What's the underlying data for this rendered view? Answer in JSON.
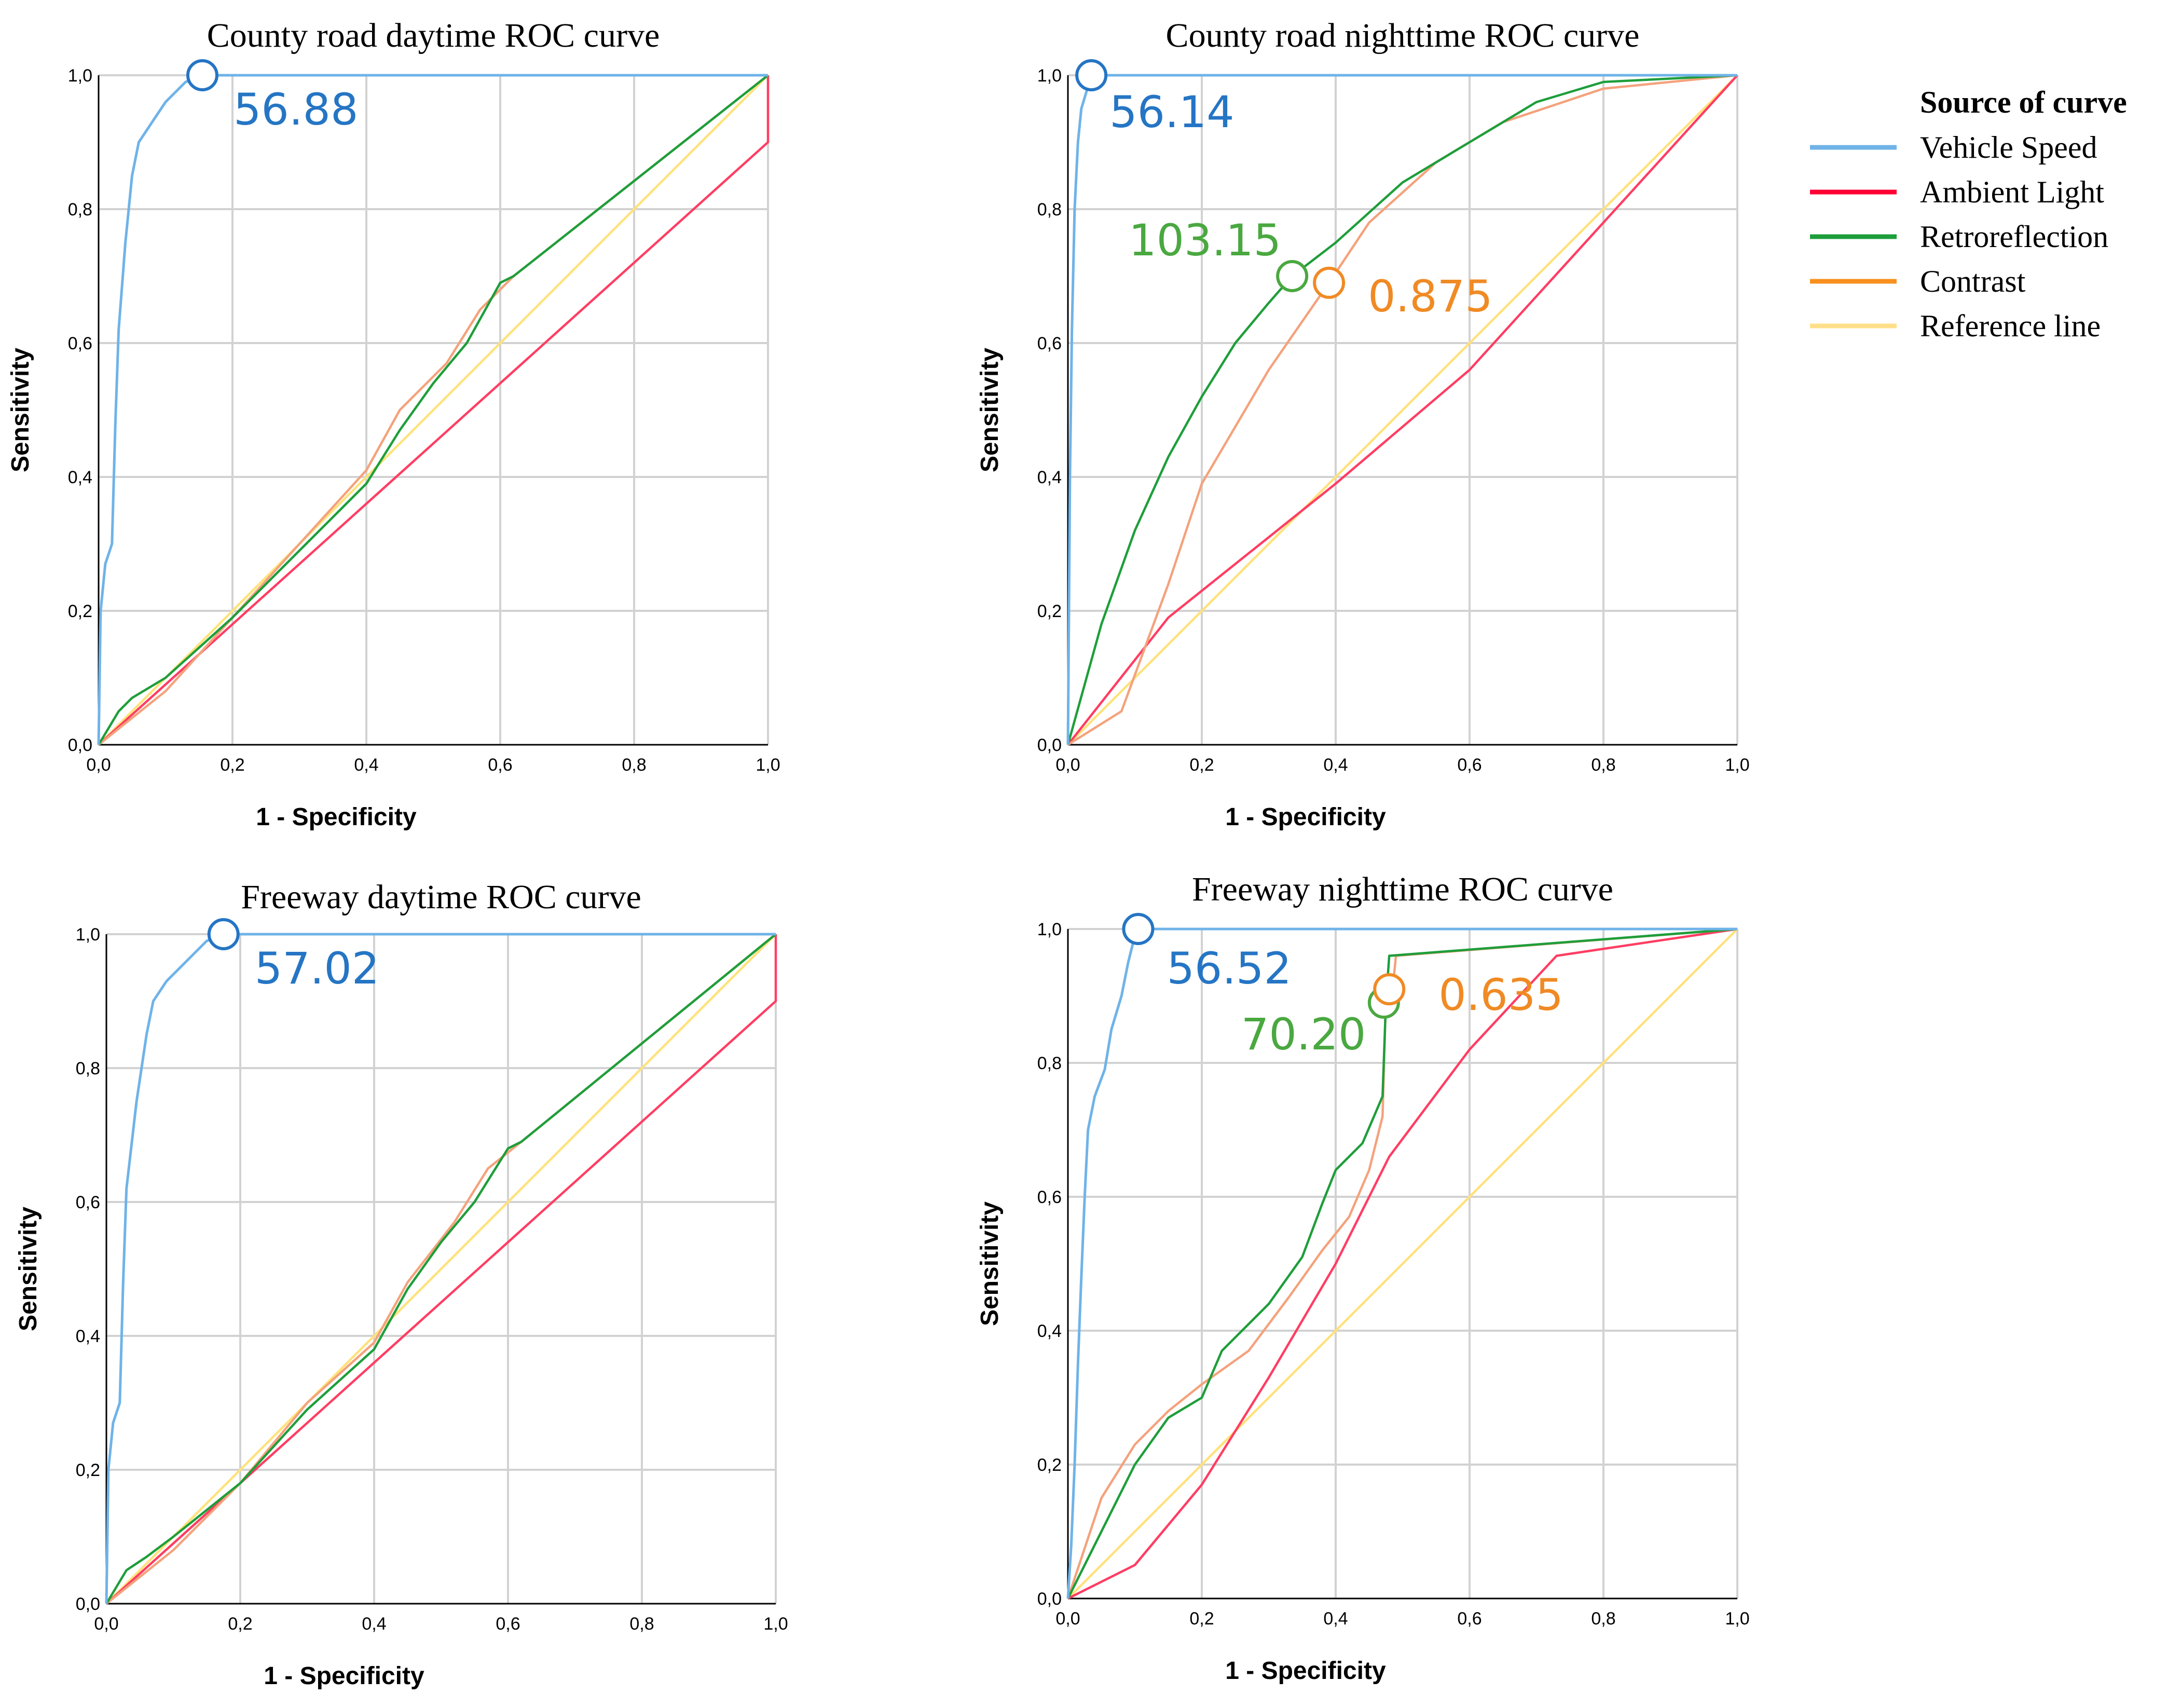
{
  "chart_data": [
    {
      "type": "line",
      "title": "County road daytime ROC curve",
      "xlabel": "1 - Specificity",
      "ylabel": "Sensitivity",
      "xlim": [
        0,
        1
      ],
      "ylim": [
        0,
        1
      ],
      "xticks": [
        "0,0",
        "0,2",
        "0,4",
        "0,6",
        "0,8",
        "1,0"
      ],
      "yticks": [
        "0,0",
        "0,2",
        "0,4",
        "0,6",
        "0,8",
        "1,0"
      ],
      "grid": true,
      "series": [
        {
          "name": "Vehicle Speed",
          "color": "#6fb3e8",
          "points": [
            [
              0,
              0
            ],
            [
              0.003,
              0.2
            ],
            [
              0.01,
              0.27
            ],
            [
              0.02,
              0.3
            ],
            [
              0.025,
              0.48
            ],
            [
              0.03,
              0.62
            ],
            [
              0.04,
              0.75
            ],
            [
              0.05,
              0.85
            ],
            [
              0.06,
              0.9
            ],
            [
              0.08,
              0.93
            ],
            [
              0.1,
              0.96
            ],
            [
              0.13,
              0.99
            ],
            [
              0.155,
              1
            ],
            [
              0.5,
              1
            ],
            [
              1,
              1
            ]
          ]
        },
        {
          "name": "Ambient Light",
          "color": "#ff3d63",
          "points": [
            [
              0,
              0
            ],
            [
              0.4,
              0.36
            ],
            [
              1,
              0.9
            ],
            [
              1,
              1
            ]
          ]
        },
        {
          "name": "Retroreflection",
          "color": "#1e9e3a",
          "points": [
            [
              0,
              0
            ],
            [
              0.03,
              0.05
            ],
            [
              0.05,
              0.07
            ],
            [
              0.1,
              0.1
            ],
            [
              0.2,
              0.19
            ],
            [
              0.3,
              0.29
            ],
            [
              0.4,
              0.39
            ],
            [
              0.45,
              0.47
            ],
            [
              0.5,
              0.54
            ],
            [
              0.55,
              0.6
            ],
            [
              0.6,
              0.69
            ],
            [
              0.62,
              0.7
            ],
            [
              1,
              1
            ]
          ]
        },
        {
          "name": "Contrast",
          "color": "#f4a27c",
          "points": [
            [
              0,
              0
            ],
            [
              0.05,
              0.04
            ],
            [
              0.1,
              0.08
            ],
            [
              0.2,
              0.19
            ],
            [
              0.3,
              0.3
            ],
            [
              0.4,
              0.41
            ],
            [
              0.45,
              0.5
            ],
            [
              0.52,
              0.57
            ],
            [
              0.57,
              0.65
            ],
            [
              0.62,
              0.7
            ],
            [
              1,
              1
            ]
          ]
        },
        {
          "name": "Reference line",
          "color": "#ffe27a",
          "points": [
            [
              0,
              0
            ],
            [
              1,
              1
            ]
          ]
        }
      ],
      "annotations": [
        {
          "text": "56.88",
          "x": 0.155,
          "y": 1.0,
          "color": "#2575c4"
        }
      ]
    },
    {
      "type": "line",
      "title": "County road nighttime ROC curve",
      "xlabel": "1 - Specificity",
      "ylabel": "Sensitivity",
      "xlim": [
        0,
        1
      ],
      "ylim": [
        0,
        1
      ],
      "xticks": [
        "0,0",
        "0,2",
        "0,4",
        "0,6",
        "0,8",
        "1,0"
      ],
      "yticks": [
        "0,0",
        "0,2",
        "0,4",
        "0,6",
        "0,8",
        "1,0"
      ],
      "grid": true,
      "series": [
        {
          "name": "Vehicle Speed",
          "color": "#6fb3e8",
          "points": [
            [
              0,
              0
            ],
            [
              0.003,
              0.4
            ],
            [
              0.006,
              0.62
            ],
            [
              0.01,
              0.8
            ],
            [
              0.015,
              0.9
            ],
            [
              0.02,
              0.95
            ],
            [
              0.035,
              1
            ],
            [
              0.4,
              1
            ],
            [
              1,
              1
            ]
          ]
        },
        {
          "name": "Ambient Light",
          "color": "#ff3d63",
          "points": [
            [
              0,
              0
            ],
            [
              0.15,
              0.19
            ],
            [
              0.4,
              0.39
            ],
            [
              0.6,
              0.56
            ],
            [
              1,
              1
            ]
          ]
        },
        {
          "name": "Retroreflection",
          "color": "#1e9e3a",
          "points": [
            [
              0,
              0
            ],
            [
              0.05,
              0.18
            ],
            [
              0.1,
              0.32
            ],
            [
              0.15,
              0.43
            ],
            [
              0.2,
              0.52
            ],
            [
              0.25,
              0.6
            ],
            [
              0.3,
              0.66
            ],
            [
              0.335,
              0.7
            ],
            [
              0.4,
              0.75
            ],
            [
              0.5,
              0.84
            ],
            [
              0.6,
              0.9
            ],
            [
              0.7,
              0.96
            ],
            [
              0.8,
              0.99
            ],
            [
              1,
              1
            ]
          ]
        },
        {
          "name": "Contrast",
          "color": "#f4a27c",
          "points": [
            [
              0,
              0
            ],
            [
              0.08,
              0.05
            ],
            [
              0.15,
              0.24
            ],
            [
              0.2,
              0.39
            ],
            [
              0.3,
              0.56
            ],
            [
              0.39,
              0.69
            ],
            [
              0.45,
              0.78
            ],
            [
              0.55,
              0.87
            ],
            [
              0.65,
              0.93
            ],
            [
              0.8,
              0.98
            ],
            [
              1,
              1
            ]
          ]
        },
        {
          "name": "Reference line",
          "color": "#ffe27a",
          "points": [
            [
              0,
              0
            ],
            [
              1,
              1
            ]
          ]
        }
      ],
      "annotations": [
        {
          "text": "56.14",
          "x": 0.035,
          "y": 1.0,
          "color": "#2575c4"
        },
        {
          "text": "103.15",
          "x": 0.335,
          "y": 0.7,
          "color": "#4aa840"
        },
        {
          "text": "0.875",
          "x": 0.39,
          "y": 0.69,
          "color": "#f08a24"
        }
      ]
    },
    {
      "type": "line",
      "title": "Freeway daytime ROC curve",
      "xlabel": "1 - Specificity",
      "ylabel": "Sensitivity",
      "xlim": [
        0,
        1
      ],
      "ylim": [
        0,
        1
      ],
      "xticks": [
        "0,0",
        "0,2",
        "0,4",
        "0,6",
        "0,8",
        "1,0"
      ],
      "yticks": [
        "0,0",
        "0,2",
        "0,4",
        "0,6",
        "0,8",
        "1,0"
      ],
      "grid": true,
      "series": [
        {
          "name": "Vehicle Speed",
          "color": "#6fb3e8",
          "points": [
            [
              0,
              0
            ],
            [
              0.003,
              0.2
            ],
            [
              0.01,
              0.27
            ],
            [
              0.02,
              0.3
            ],
            [
              0.025,
              0.48
            ],
            [
              0.03,
              0.62
            ],
            [
              0.045,
              0.75
            ],
            [
              0.06,
              0.85
            ],
            [
              0.07,
              0.9
            ],
            [
              0.09,
              0.93
            ],
            [
              0.12,
              0.96
            ],
            [
              0.15,
              0.99
            ],
            [
              0.175,
              1
            ],
            [
              0.5,
              1
            ],
            [
              1,
              1
            ]
          ]
        },
        {
          "name": "Ambient Light",
          "color": "#ff3d63",
          "points": [
            [
              0,
              0
            ],
            [
              0.4,
              0.36
            ],
            [
              1,
              0.9
            ],
            [
              1,
              1
            ]
          ]
        },
        {
          "name": "Retroreflection",
          "color": "#1e9e3a",
          "points": [
            [
              0,
              0
            ],
            [
              0.03,
              0.05
            ],
            [
              0.06,
              0.07
            ],
            [
              0.1,
              0.1
            ],
            [
              0.2,
              0.18
            ],
            [
              0.3,
              0.29
            ],
            [
              0.4,
              0.38
            ],
            [
              0.45,
              0.47
            ],
            [
              0.5,
              0.54
            ],
            [
              0.55,
              0.6
            ],
            [
              0.6,
              0.68
            ],
            [
              0.62,
              0.69
            ],
            [
              1,
              1
            ]
          ]
        },
        {
          "name": "Contrast",
          "color": "#f4a27c",
          "points": [
            [
              0,
              0
            ],
            [
              0.05,
              0.04
            ],
            [
              0.1,
              0.08
            ],
            [
              0.2,
              0.18
            ],
            [
              0.3,
              0.3
            ],
            [
              0.4,
              0.39
            ],
            [
              0.45,
              0.48
            ],
            [
              0.52,
              0.57
            ],
            [
              0.57,
              0.65
            ],
            [
              0.62,
              0.69
            ],
            [
              1,
              1
            ]
          ]
        },
        {
          "name": "Reference line",
          "color": "#ffe27a",
          "points": [
            [
              0,
              0
            ],
            [
              1,
              1
            ]
          ]
        }
      ],
      "annotations": [
        {
          "text": "57.02",
          "x": 0.175,
          "y": 1.0,
          "color": "#2575c4"
        }
      ]
    },
    {
      "type": "line",
      "title": "Freeway nighttime ROC curve",
      "xlabel": "1 - Specificity",
      "ylabel": "Sensitivity",
      "xlim": [
        0,
        1
      ],
      "ylim": [
        0,
        1
      ],
      "xticks": [
        "0,0",
        "0,2",
        "0,4",
        "0,6",
        "0,8",
        "1,0"
      ],
      "yticks": [
        "0,0",
        "0,2",
        "0,4",
        "0,6",
        "0,8",
        "1,0"
      ],
      "grid": true,
      "series": [
        {
          "name": "Vehicle Speed",
          "color": "#6fb3e8",
          "points": [
            [
              0,
              0
            ],
            [
              0.005,
              0.08
            ],
            [
              0.01,
              0.2
            ],
            [
              0.015,
              0.35
            ],
            [
              0.02,
              0.48
            ],
            [
              0.025,
              0.6
            ],
            [
              0.03,
              0.7
            ],
            [
              0.04,
              0.75
            ],
            [
              0.055,
              0.79
            ],
            [
              0.065,
              0.85
            ],
            [
              0.08,
              0.9
            ],
            [
              0.09,
              0.95
            ],
            [
              0.1,
              0.99
            ],
            [
              0.105,
              1
            ],
            [
              0.5,
              1
            ],
            [
              1,
              1
            ]
          ]
        },
        {
          "name": "Ambient Light",
          "color": "#ff3d63",
          "points": [
            [
              0,
              0
            ],
            [
              0.1,
              0.05
            ],
            [
              0.2,
              0.17
            ],
            [
              0.3,
              0.33
            ],
            [
              0.4,
              0.5
            ],
            [
              0.48,
              0.66
            ],
            [
              0.6,
              0.82
            ],
            [
              0.73,
              0.96
            ],
            [
              1,
              1
            ]
          ]
        },
        {
          "name": "Retroreflection",
          "color": "#1e9e3a",
          "points": [
            [
              0,
              0
            ],
            [
              0.05,
              0.1
            ],
            [
              0.1,
              0.2
            ],
            [
              0.15,
              0.27
            ],
            [
              0.2,
              0.3
            ],
            [
              0.23,
              0.37
            ],
            [
              0.3,
              0.44
            ],
            [
              0.35,
              0.51
            ],
            [
              0.38,
              0.59
            ],
            [
              0.4,
              0.64
            ],
            [
              0.44,
              0.68
            ],
            [
              0.47,
              0.75
            ],
            [
              0.475,
              0.89
            ],
            [
              0.48,
              0.96
            ],
            [
              1,
              1
            ]
          ]
        },
        {
          "name": "Contrast",
          "color": "#f4a27c",
          "points": [
            [
              0,
              0
            ],
            [
              0.05,
              0.15
            ],
            [
              0.1,
              0.23
            ],
            [
              0.15,
              0.28
            ],
            [
              0.2,
              0.32
            ],
            [
              0.27,
              0.37
            ],
            [
              0.33,
              0.45
            ],
            [
              0.38,
              0.52
            ],
            [
              0.42,
              0.57
            ],
            [
              0.45,
              0.64
            ],
            [
              0.47,
              0.72
            ],
            [
              0.475,
              0.9
            ],
            [
              0.485,
              0.91
            ],
            [
              0.49,
              0.96
            ],
            [
              1,
              1
            ]
          ]
        },
        {
          "name": "Reference line",
          "color": "#ffe27a",
          "points": [
            [
              0,
              0
            ],
            [
              1,
              1
            ]
          ]
        }
      ],
      "annotations": [
        {
          "text": "56.52",
          "x": 0.105,
          "y": 1.0,
          "color": "#2575c4"
        },
        {
          "text": "70.20",
          "x": 0.472,
          "y": 0.89,
          "color": "#4aa840"
        },
        {
          "text": "0.635",
          "x": 0.48,
          "y": 0.91,
          "color": "#f08a24"
        }
      ]
    }
  ],
  "legend": {
    "title": "Source of curve",
    "placement": "right",
    "entries": [
      {
        "label": "Vehicle Speed",
        "color": "#6fb3e8"
      },
      {
        "label": "Ambient Light",
        "color": "#ff0033"
      },
      {
        "label": "Retroreflection",
        "color": "#1e9e3a"
      },
      {
        "label": "Contrast",
        "color": "#f7901e"
      },
      {
        "label": "Reference line",
        "color": "#ffe08a"
      }
    ]
  }
}
